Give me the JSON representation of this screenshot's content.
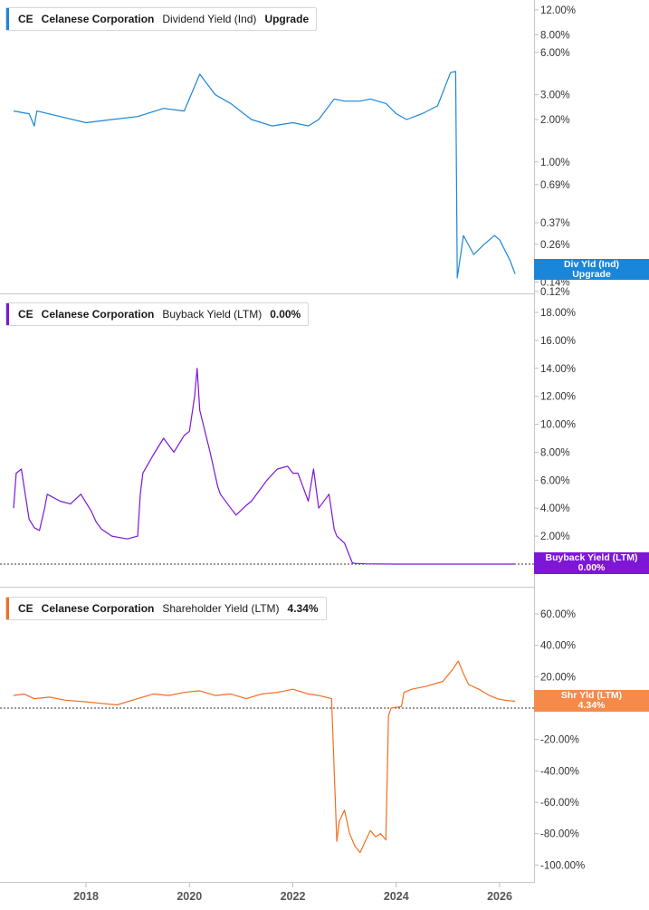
{
  "chart_data": [
    {
      "type": "line",
      "ticker": "CE",
      "company": "Celanese Corporation",
      "metric": "Dividend Yield (Ind)",
      "value_label": "Upgrade",
      "tag_lines": [
        "Div Yld (Ind)",
        "Upgrade"
      ],
      "color": "#1a86d9",
      "scale": "log",
      "yticks": [
        "12.00%",
        "8.00%",
        "6.00%",
        "3.00%",
        "2.00%",
        "1.00%",
        "0.69%",
        "0.37%",
        "0.26%",
        "0.14%",
        "0.12%"
      ],
      "ytick_values": [
        12,
        8,
        6,
        3,
        2,
        1,
        0.69,
        0.37,
        0.26,
        0.14,
        0.12
      ],
      "series": [
        {
          "x": [
            2016.6,
            2016.9,
            2017.0,
            2017.05,
            2017.5,
            2018.0,
            2018.5,
            2019.0,
            2019.5,
            2019.9,
            2020.2,
            2020.5,
            2020.8,
            2021.2,
            2021.6,
            2022.0,
            2022.3,
            2022.5,
            2022.8,
            2023.0,
            2023.3,
            2023.5,
            2023.8,
            2024.0,
            2024.2,
            2024.5,
            2024.8,
            2025.05,
            2025.15,
            2025.18,
            2025.3,
            2025.5,
            2025.7,
            2025.9,
            2026.0,
            2026.2,
            2026.3
          ],
          "y": [
            2.3,
            2.2,
            1.8,
            2.3,
            2.1,
            1.9,
            2.0,
            2.1,
            2.4,
            2.3,
            4.2,
            3.0,
            2.6,
            2.0,
            1.8,
            1.9,
            1.8,
            2.0,
            2.8,
            2.7,
            2.7,
            2.8,
            2.6,
            2.2,
            2.0,
            2.2,
            2.5,
            4.3,
            4.4,
            0.15,
            0.3,
            0.22,
            0.26,
            0.3,
            0.28,
            0.2,
            0.16
          ]
        }
      ]
    },
    {
      "type": "line",
      "ticker": "CE",
      "company": "Celanese Corporation",
      "metric": "Buyback Yield (LTM)",
      "value_label": "0.00%",
      "tag_lines": [
        "Buyback Yield (LTM)",
        "0.00%"
      ],
      "color": "#7d16d6",
      "yticks": [
        "18.00%",
        "16.00%",
        "14.00%",
        "12.00%",
        "10.00%",
        "8.00%",
        "6.00%",
        "4.00%",
        "2.00%"
      ],
      "ytick_values": [
        18,
        16,
        14,
        12,
        10,
        8,
        6,
        4,
        2
      ],
      "baseline": 0,
      "series": [
        {
          "x": [
            2016.6,
            2016.65,
            2016.75,
            2016.9,
            2017.0,
            2017.1,
            2017.2,
            2017.25,
            2017.5,
            2017.7,
            2017.9,
            2018.1,
            2018.2,
            2018.3,
            2018.5,
            2018.8,
            2019.0,
            2019.05,
            2019.1,
            2019.3,
            2019.5,
            2019.7,
            2019.9,
            2020.0,
            2020.1,
            2020.15,
            2020.2,
            2020.4,
            2020.55,
            2020.6,
            2020.8,
            2020.9,
            2021.1,
            2021.2,
            2021.4,
            2021.5,
            2021.7,
            2021.9,
            2022.0,
            2022.1,
            2022.2,
            2022.3,
            2022.4,
            2022.5,
            2022.7,
            2022.8,
            2022.85,
            2023.0,
            2023.15,
            2023.2,
            2023.4,
            2024.0,
            2025.0,
            2026.0,
            2026.3
          ],
          "y": [
            4.0,
            6.5,
            6.8,
            3.2,
            2.6,
            2.4,
            4.0,
            5.0,
            4.5,
            4.3,
            5.0,
            3.8,
            3.0,
            2.5,
            2.0,
            1.8,
            2.0,
            5.0,
            6.5,
            7.8,
            9.0,
            8.0,
            9.2,
            9.5,
            12.0,
            14.0,
            11.0,
            8.0,
            5.5,
            5.0,
            4.0,
            3.5,
            4.2,
            4.5,
            5.5,
            6.0,
            6.8,
            7.0,
            6.5,
            6.5,
            5.5,
            4.5,
            6.8,
            4.0,
            5.0,
            2.5,
            2.0,
            1.5,
            0.1,
            0.05,
            0.02,
            0.0,
            0.0,
            0.0,
            0.0
          ]
        }
      ]
    },
    {
      "type": "line",
      "ticker": "CE",
      "company": "Celanese Corporation",
      "metric": "Shareholder Yield (LTM)",
      "value_label": "4.34%",
      "tag_lines": [
        "Shr Yld (LTM)",
        "4.34%"
      ],
      "color": "#f26e21",
      "yticks": [
        "60.00%",
        "40.00%",
        "20.00%",
        "0.00%",
        "-20.00%",
        "-40.00%",
        "-60.00%",
        "-80.00%",
        "-100.00%"
      ],
      "ytick_values": [
        60,
        40,
        20,
        0,
        -20,
        -40,
        -60,
        -80,
        -100
      ],
      "baseline": 0,
      "series": [
        {
          "x": [
            2016.6,
            2016.8,
            2017.0,
            2017.3,
            2017.6,
            2018.0,
            2018.3,
            2018.6,
            2019.0,
            2019.3,
            2019.6,
            2019.9,
            2020.2,
            2020.5,
            2020.8,
            2021.1,
            2021.4,
            2021.7,
            2022.0,
            2022.3,
            2022.5,
            2022.75,
            2022.85,
            2022.9,
            2023.0,
            2023.1,
            2023.2,
            2023.3,
            2023.4,
            2023.5,
            2023.6,
            2023.7,
            2023.8,
            2023.85,
            2023.9,
            2024.1,
            2024.15,
            2024.3,
            2024.6,
            2024.9,
            2025.1,
            2025.2,
            2025.3,
            2025.4,
            2025.6,
            2025.8,
            2025.95,
            2026.1,
            2026.3
          ],
          "y": [
            8,
            9,
            6,
            7,
            5,
            4,
            3,
            2,
            6,
            9,
            8,
            10,
            11,
            8,
            9,
            6,
            9,
            10,
            12,
            9,
            8,
            6,
            -85,
            -72,
            -65,
            -80,
            -88,
            -92,
            -85,
            -78,
            -82,
            -80,
            -84,
            -5,
            0,
            1,
            10,
            12,
            14,
            17,
            25,
            30,
            22,
            15,
            12,
            8,
            6,
            5,
            4.34
          ]
        }
      ]
    }
  ],
  "xaxis": {
    "ticks": [
      "2018",
      "2020",
      "2022",
      "2024",
      "2026"
    ],
    "values": [
      2018,
      2020,
      2022,
      2024,
      2026
    ]
  }
}
